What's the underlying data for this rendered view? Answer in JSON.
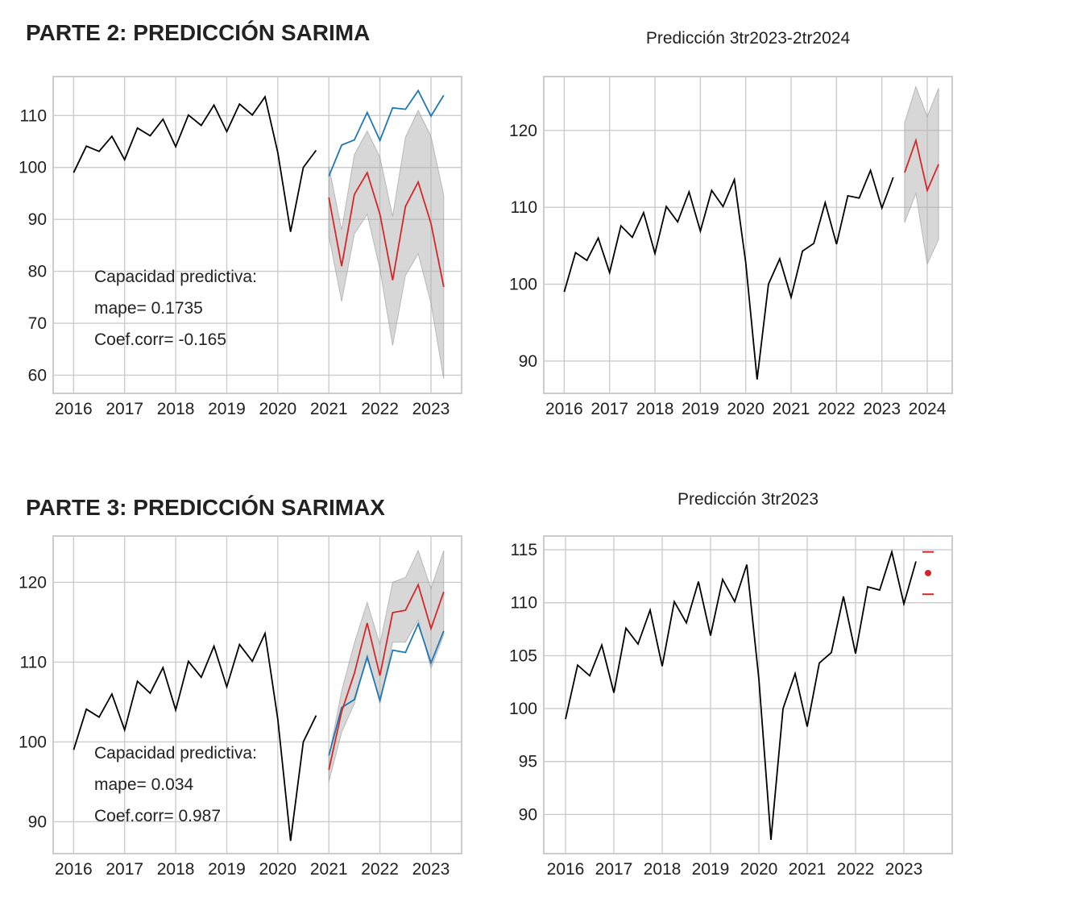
{
  "sections": {
    "parte2_title": "PARTE 2: PREDICCIÓN SARIMA",
    "parte3_title": "PARTE 3: PREDICCIÓN SARIMAX"
  },
  "colors": {
    "actual": "#000000",
    "observed_test": "#1f77b4",
    "prediction": "#d62728",
    "interval": "#b0b0b0",
    "grid": "#cccccc"
  },
  "chart_data": [
    {
      "id": "sarima_validation",
      "type": "line",
      "title": "",
      "xlim": [
        2015.6,
        2023.6
      ],
      "ylim": [
        56.5,
        117.5
      ],
      "xticks": [
        2016,
        2017,
        2018,
        2019,
        2020,
        2021,
        2022,
        2023
      ],
      "yticks": [
        60,
        70,
        80,
        90,
        100,
        110
      ],
      "series": [
        {
          "role": "actual",
          "x": [
            2016.0,
            2016.25,
            2016.5,
            2016.75,
            2017.0,
            2017.25,
            2017.5,
            2017.75,
            2018.0,
            2018.25,
            2018.5,
            2018.75,
            2019.0,
            2019.25,
            2019.5,
            2019.75,
            2020.0,
            2020.25,
            2020.5,
            2020.75
          ],
          "y": [
            99.0,
            104.1,
            103.1,
            106.0,
            101.5,
            107.6,
            106.1,
            109.3,
            104.0,
            110.1,
            108.1,
            112.0,
            106.9,
            112.2,
            110.1,
            113.6,
            102.8,
            87.6,
            100.0,
            103.3
          ]
        },
        {
          "role": "observed_test",
          "x": [
            2021.0,
            2021.25,
            2021.5,
            2021.75,
            2022.0,
            2022.25,
            2022.5,
            2022.75,
            2023.0,
            2023.25
          ],
          "y": [
            98.3,
            104.3,
            105.3,
            110.6,
            105.2,
            111.5,
            111.2,
            114.8,
            109.9,
            113.9
          ]
        },
        {
          "role": "prediction",
          "x": [
            2021.0,
            2021.25,
            2021.5,
            2021.75,
            2022.0,
            2022.25,
            2022.5,
            2022.75,
            2023.0,
            2023.25
          ],
          "y": [
            94.2,
            81.0,
            94.8,
            99.0,
            91.0,
            78.3,
            92.5,
            97.2,
            89.2,
            77.0
          ]
        },
        {
          "role": "interval",
          "x": [
            2021.0,
            2021.25,
            2021.5,
            2021.75,
            2022.0,
            2022.25,
            2022.5,
            2022.75,
            2023.0,
            2023.25
          ],
          "lower": [
            86.8,
            74.2,
            87.2,
            91.0,
            80.4,
            65.7,
            79.2,
            83.4,
            73.8,
            59.3
          ],
          "upper": [
            100.2,
            88.0,
            102.5,
            107.0,
            102.0,
            90.6,
            105.8,
            111.0,
            106.0,
            94.7
          ]
        }
      ],
      "annotation": [
        "Capacidad predictiva:",
        "mape= 0.1735",
        "Coef.corr= -0.165"
      ]
    },
    {
      "id": "sarima_forecast",
      "type": "line",
      "title": "Predicción 3tr2023-2tr2024",
      "xlim": [
        2015.55,
        2024.55
      ],
      "ylim": [
        85.8,
        127.0
      ],
      "xticks": [
        2016,
        2017,
        2018,
        2019,
        2020,
        2021,
        2022,
        2023,
        2024
      ],
      "yticks": [
        90,
        100,
        110,
        120
      ],
      "series": [
        {
          "role": "actual",
          "x": [
            2016.0,
            2016.25,
            2016.5,
            2016.75,
            2017.0,
            2017.25,
            2017.5,
            2017.75,
            2018.0,
            2018.25,
            2018.5,
            2018.75,
            2019.0,
            2019.25,
            2019.5,
            2019.75,
            2020.0,
            2020.25,
            2020.5,
            2020.75,
            2021.0,
            2021.25,
            2021.5,
            2021.75,
            2022.0,
            2022.25,
            2022.5,
            2022.75,
            2023.0,
            2023.25
          ],
          "y": [
            99.0,
            104.1,
            103.1,
            106.0,
            101.5,
            107.6,
            106.1,
            109.3,
            104.0,
            110.1,
            108.1,
            112.0,
            106.9,
            112.2,
            110.1,
            113.6,
            102.8,
            87.6,
            100.0,
            103.3,
            98.3,
            104.3,
            105.3,
            110.6,
            105.2,
            111.5,
            111.2,
            114.8,
            109.9,
            113.9
          ]
        },
        {
          "role": "prediction",
          "x": [
            2023.5,
            2023.75,
            2024.0,
            2024.25
          ],
          "y": [
            114.5,
            118.7,
            112.2,
            115.6
          ]
        },
        {
          "role": "interval",
          "x": [
            2023.5,
            2023.75,
            2024.0,
            2024.25
          ],
          "lower": [
            108.0,
            111.8,
            102.6,
            105.8
          ],
          "upper": [
            121.0,
            125.7,
            121.8,
            125.5
          ]
        }
      ]
    },
    {
      "id": "sarimax_validation",
      "type": "line",
      "title": "",
      "xlim": [
        2015.6,
        2023.6
      ],
      "ylim": [
        86.0,
        125.8
      ],
      "xticks": [
        2016,
        2017,
        2018,
        2019,
        2020,
        2021,
        2022,
        2023
      ],
      "yticks": [
        90,
        100,
        110,
        120
      ],
      "series": [
        {
          "role": "actual",
          "x": [
            2016.0,
            2016.25,
            2016.5,
            2016.75,
            2017.0,
            2017.25,
            2017.5,
            2017.75,
            2018.0,
            2018.25,
            2018.5,
            2018.75,
            2019.0,
            2019.25,
            2019.5,
            2019.75,
            2020.0,
            2020.25,
            2020.5,
            2020.75
          ],
          "y": [
            99.0,
            104.1,
            103.1,
            106.0,
            101.5,
            107.6,
            106.1,
            109.3,
            104.0,
            110.1,
            108.1,
            112.0,
            106.9,
            112.2,
            110.1,
            113.6,
            102.8,
            87.6,
            100.0,
            103.3
          ]
        },
        {
          "role": "observed_test",
          "x": [
            2021.0,
            2021.25,
            2021.5,
            2021.75,
            2022.0,
            2022.25,
            2022.5,
            2022.75,
            2023.0,
            2023.25
          ],
          "y": [
            98.3,
            104.3,
            105.3,
            110.6,
            105.2,
            111.5,
            111.2,
            114.8,
            109.9,
            113.9
          ]
        },
        {
          "role": "prediction",
          "x": [
            2021.0,
            2021.25,
            2021.5,
            2021.75,
            2022.0,
            2022.25,
            2022.5,
            2022.75,
            2023.0,
            2023.25
          ],
          "y": [
            96.5,
            103.8,
            108.6,
            114.9,
            108.3,
            116.2,
            116.5,
            119.7,
            114.2,
            118.8
          ]
        },
        {
          "role": "interval",
          "x": [
            2021.0,
            2021.25,
            2021.5,
            2021.75,
            2022.0,
            2022.25,
            2022.5,
            2022.75,
            2023.0,
            2023.25
          ],
          "lower": [
            95.0,
            101.2,
            104.8,
            111.0,
            104.8,
            112.5,
            112.5,
            115.3,
            109.2,
            113.4
          ],
          "upper": [
            98.2,
            106.4,
            112.4,
            117.5,
            112.2,
            120.0,
            120.6,
            124.0,
            119.2,
            124.0
          ]
        }
      ],
      "annotation": [
        "Capacidad predictiva:",
        "mape= 0.034",
        "Coef.corr= 0.987"
      ]
    },
    {
      "id": "sarimax_forecast",
      "type": "line",
      "title": "Predicción 3tr2023",
      "xlim": [
        2015.55,
        2024.0
      ],
      "ylim": [
        86.3,
        116.3
      ],
      "xticks": [
        2016,
        2017,
        2018,
        2019,
        2020,
        2021,
        2022,
        2023
      ],
      "yticks": [
        90,
        95,
        100,
        105,
        110,
        115
      ],
      "series": [
        {
          "role": "actual",
          "x": [
            2016.0,
            2016.25,
            2016.5,
            2016.75,
            2017.0,
            2017.25,
            2017.5,
            2017.75,
            2018.0,
            2018.25,
            2018.5,
            2018.75,
            2019.0,
            2019.25,
            2019.5,
            2019.75,
            2020.0,
            2020.25,
            2020.5,
            2020.75,
            2021.0,
            2021.25,
            2021.5,
            2021.75,
            2022.0,
            2022.25,
            2022.5,
            2022.75,
            2023.0,
            2023.25
          ],
          "y": [
            99.0,
            104.1,
            103.1,
            106.0,
            101.5,
            107.6,
            106.1,
            109.3,
            104.0,
            110.1,
            108.1,
            112.0,
            106.9,
            112.2,
            110.1,
            113.6,
            102.8,
            87.6,
            100.0,
            103.3,
            98.3,
            104.3,
            105.3,
            110.6,
            105.2,
            111.5,
            111.2,
            114.8,
            109.9,
            113.9
          ]
        },
        {
          "role": "point_forecast",
          "x": 2023.5,
          "y": 112.8,
          "lower": 110.8,
          "upper": 114.8
        }
      ]
    }
  ]
}
